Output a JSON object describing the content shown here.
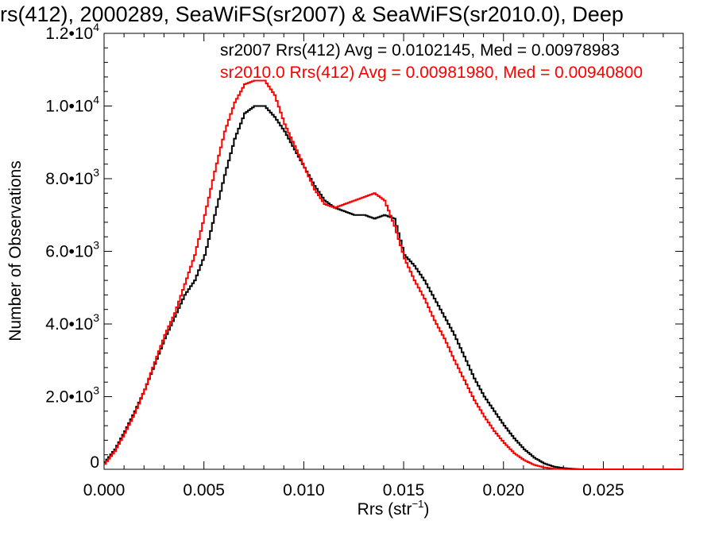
{
  "chart_data": {
    "type": "line",
    "title": "rs(412), 2000289, SeaWiFS(sr2007) & SeaWiFS(sr2010.0), Deep",
    "xlabel": "Rrs (str",
    "xlabel_sup": "−1",
    "xlabel_tail": ")",
    "ylabel": "Number of Observations",
    "xlim": [
      0,
      0.029
    ],
    "ylim": [
      0,
      12000
    ],
    "x_ticks": [
      0.0,
      0.005,
      0.01,
      0.015,
      0.02,
      0.025
    ],
    "x_tick_labels": [
      "0.000",
      "0.005",
      "0.010",
      "0.015",
      "0.020",
      "0.025"
    ],
    "y_ticks": [
      0,
      2000,
      4000,
      6000,
      8000,
      10000,
      12000
    ],
    "y_tick_labels": [
      {
        "mant": "0",
        "exp": ""
      },
      {
        "mant": "2.0•10",
        "exp": "3"
      },
      {
        "mant": "4.0•10",
        "exp": "3"
      },
      {
        "mant": "6.0•10",
        "exp": "3"
      },
      {
        "mant": "8.0•10",
        "exp": "3"
      },
      {
        "mant": "1.0•10",
        "exp": "4"
      },
      {
        "mant": "1.2•10",
        "exp": "4"
      }
    ],
    "grid": false,
    "annotations": [
      {
        "text": "sr2007 Rrs(412) Avg = 0.0102145, Med = 0.00978983",
        "color": "#000000"
      },
      {
        "text": "sr2010.0 Rrs(412) Avg = 0.00981980, Med = 0.00940800",
        "color": "#ff0000"
      }
    ],
    "series": [
      {
        "name": "sr2007",
        "color": "#000000",
        "x": [
          0.0,
          0.0005,
          0.001,
          0.0015,
          0.002,
          0.0025,
          0.003,
          0.0035,
          0.004,
          0.0045,
          0.005,
          0.0055,
          0.006,
          0.0065,
          0.007,
          0.0075,
          0.008,
          0.0085,
          0.009,
          0.0095,
          0.01,
          0.0105,
          0.011,
          0.0115,
          0.012,
          0.0125,
          0.013,
          0.0135,
          0.014,
          0.0145,
          0.015,
          0.0155,
          0.016,
          0.0165,
          0.017,
          0.0175,
          0.018,
          0.0185,
          0.019,
          0.0195,
          0.02,
          0.0205,
          0.021,
          0.0215,
          0.022,
          0.0225,
          0.023,
          0.0235,
          0.024,
          0.025,
          0.029
        ],
        "y": [
          200,
          550,
          1050,
          1600,
          2200,
          2900,
          3600,
          4200,
          4800,
          5200,
          5900,
          7000,
          8100,
          9100,
          9800,
          10000,
          10000,
          9700,
          9300,
          8800,
          8300,
          7800,
          7400,
          7200,
          7100,
          7000,
          7000,
          6900,
          7000,
          6900,
          5900,
          5600,
          5200,
          4700,
          4200,
          3700,
          3100,
          2500,
          2000,
          1600,
          1200,
          850,
          550,
          320,
          160,
          70,
          30,
          10,
          0,
          0,
          0
        ]
      },
      {
        "name": "sr2010.0",
        "color": "#ff0000",
        "x": [
          0.0,
          0.0005,
          0.001,
          0.0015,
          0.002,
          0.0025,
          0.003,
          0.0035,
          0.004,
          0.0045,
          0.005,
          0.0055,
          0.006,
          0.0065,
          0.007,
          0.0075,
          0.008,
          0.0085,
          0.009,
          0.0095,
          0.01,
          0.0105,
          0.011,
          0.0115,
          0.012,
          0.0125,
          0.013,
          0.0135,
          0.014,
          0.0145,
          0.015,
          0.0155,
          0.016,
          0.0165,
          0.017,
          0.0175,
          0.018,
          0.0185,
          0.019,
          0.0195,
          0.02,
          0.0205,
          0.021,
          0.0215,
          0.022,
          0.0225,
          0.023,
          0.0235,
          0.024,
          0.025,
          0.029
        ],
        "y": [
          150,
          500,
          1000,
          1550,
          2200,
          2950,
          3700,
          4300,
          5100,
          5900,
          7000,
          8200,
          9300,
          10100,
          10600,
          10700,
          10700,
          10300,
          9500,
          8900,
          8300,
          7700,
          7300,
          7200,
          7300,
          7400,
          7500,
          7600,
          7400,
          6700,
          5800,
          5200,
          4700,
          4100,
          3600,
          3000,
          2450,
          1900,
          1450,
          1050,
          720,
          440,
          250,
          120,
          50,
          15,
          5,
          0,
          0,
          0,
          0
        ]
      }
    ]
  }
}
